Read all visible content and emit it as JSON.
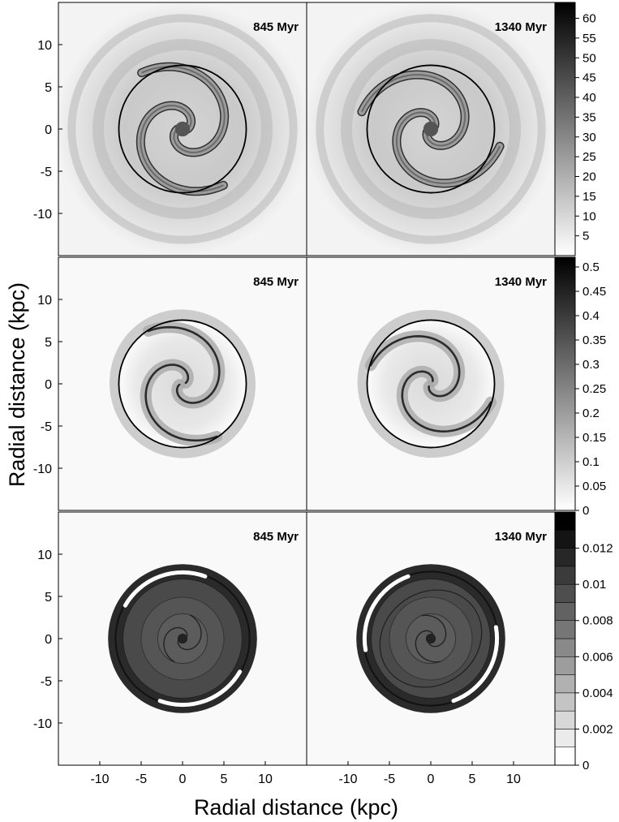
{
  "figure": {
    "ylabel": "Radial distance (kpc)",
    "xlabel": "Radial distance (kpc)"
  },
  "chart_data": [
    {
      "type": "heatmap",
      "row": 0,
      "axis_range": [
        -15,
        15
      ],
      "x_ticks": [
        -10,
        -5,
        0,
        5,
        10
      ],
      "y_ticks": [
        10,
        5,
        0,
        -5,
        -10
      ],
      "circle_radius": 7.7,
      "colorbar": {
        "ticks": [
          "60",
          "55",
          "50",
          "45",
          "40",
          "35",
          "30",
          "25",
          "20",
          "15",
          "10",
          "5"
        ],
        "range": [
          0,
          64
        ]
      },
      "panels": [
        {
          "label": "845 Myr",
          "arm_extent": 8.4
        },
        {
          "label": "1340 Myr",
          "arm_extent": 8.6
        }
      ]
    },
    {
      "type": "heatmap",
      "row": 1,
      "axis_range": [
        -15,
        15
      ],
      "x_ticks": [
        -10,
        -5,
        0,
        5,
        10
      ],
      "y_ticks": [
        10,
        5,
        0,
        -5,
        -10
      ],
      "circle_radius": 7.7,
      "colorbar": {
        "ticks": [
          "0.5",
          "0.45",
          "0.4",
          "0.35",
          "0.3",
          "0.25",
          "0.2",
          "0.15",
          "0.1",
          "0.05",
          "0"
        ],
        "range": [
          0,
          0.52
        ]
      },
      "panels": [
        {
          "label": "845 Myr"
        },
        {
          "label": "1340 Myr"
        }
      ]
    },
    {
      "type": "heatmap",
      "row": 2,
      "axis_range": [
        -15,
        15
      ],
      "x_ticks": [
        -10,
        -5,
        0,
        5,
        10
      ],
      "y_ticks": [
        10,
        5,
        0,
        -5,
        -10
      ],
      "colorbar": {
        "ticks": [
          "0.012",
          "0.01",
          "0.008",
          "0.006",
          "0.004",
          "0.002",
          "0"
        ],
        "range": [
          0,
          0.014
        ],
        "levels": 14
      },
      "panels": [
        {
          "label": "845 Myr"
        },
        {
          "label": "1340 Myr"
        }
      ]
    }
  ]
}
